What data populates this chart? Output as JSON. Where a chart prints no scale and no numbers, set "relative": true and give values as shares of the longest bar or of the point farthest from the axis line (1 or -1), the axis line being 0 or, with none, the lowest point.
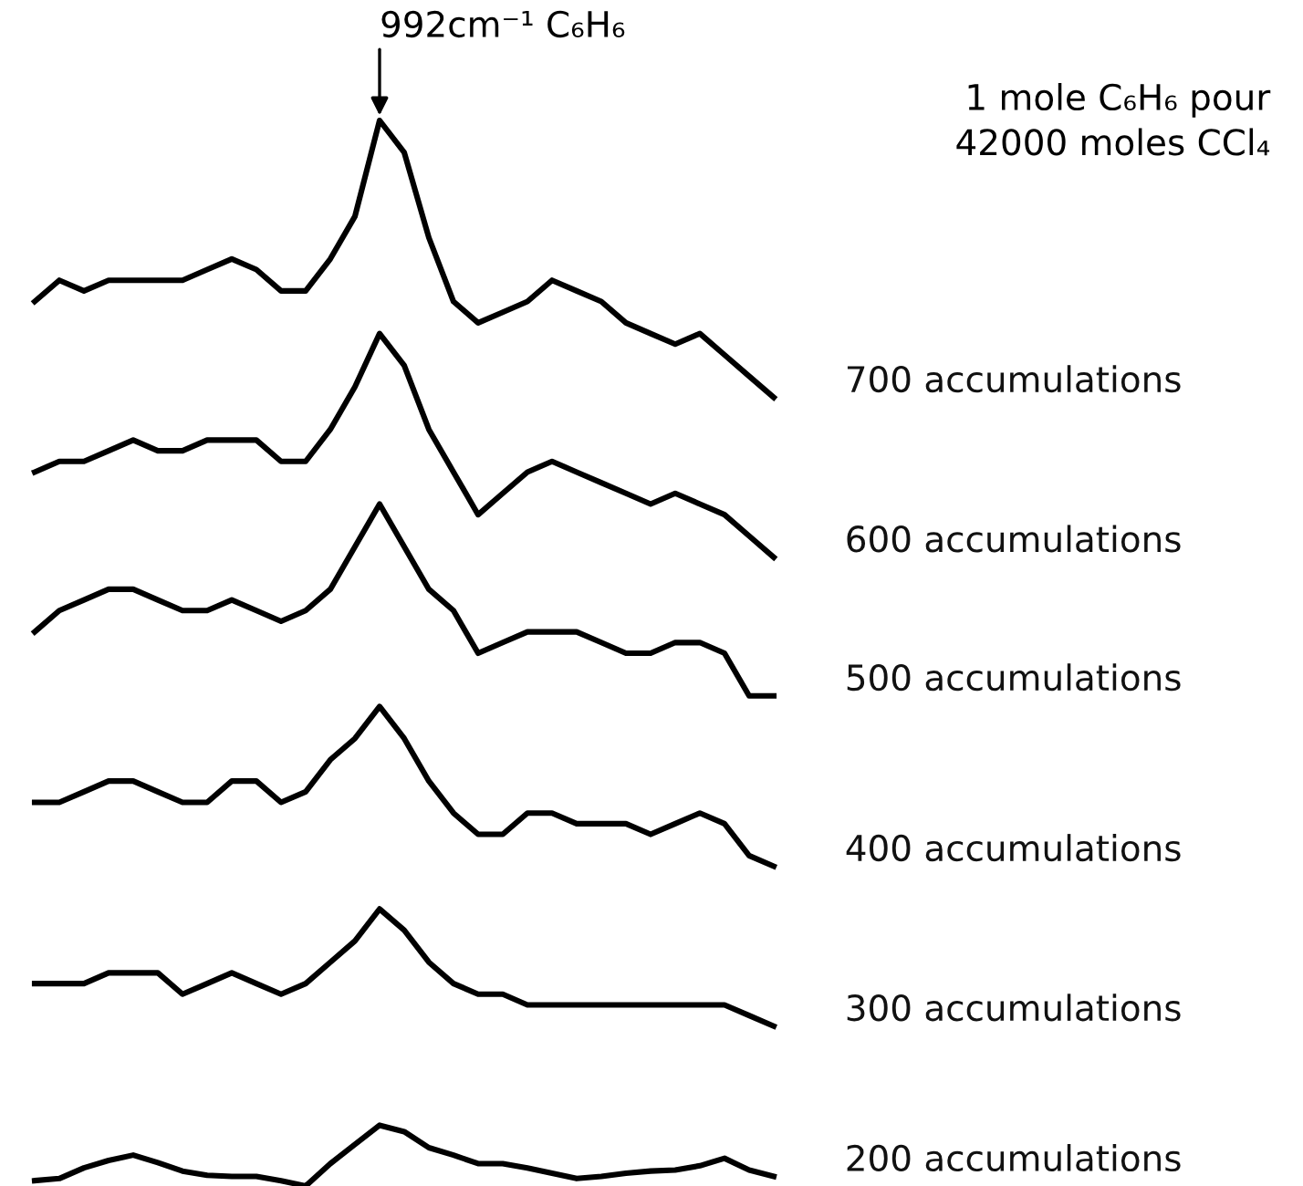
{
  "chart_data": {
    "type": "line",
    "relative": true,
    "legend": false,
    "marker": "none",
    "line_style": "solid",
    "categories": [
      null,
      null,
      null,
      null,
      null,
      null,
      null,
      null,
      null,
      null,
      null,
      null,
      null,
      null,
      null,
      null,
      null,
      null,
      null,
      null,
      null,
      null,
      null,
      null,
      null,
      null,
      null,
      null,
      null,
      null,
      null
    ],
    "series": [
      {
        "name": "700 accumulations",
        "color": "#000000",
        "values": [
          0.83,
          0.85,
          0.84,
          0.85,
          0.85,
          0.85,
          0.85,
          0.86,
          0.87,
          0.86,
          0.84,
          0.84,
          0.87,
          0.91,
          1,
          0.97,
          0.89,
          0.83,
          0.81,
          0.82,
          0.83,
          0.85,
          0.84,
          0.83,
          0.81,
          0.8,
          0.79,
          0.8,
          0.78,
          0.76,
          0.74
        ]
      },
      {
        "name": "600 accumulations",
        "color": "#000000",
        "values": [
          0.67,
          0.68,
          0.68,
          0.69,
          0.7,
          0.69,
          0.69,
          0.7,
          0.7,
          0.7,
          0.68,
          0.68,
          0.71,
          0.75,
          0.8,
          0.77,
          0.71,
          0.67,
          0.63,
          0.65,
          0.67,
          0.68,
          0.67,
          0.66,
          0.65,
          0.64,
          0.65,
          0.64,
          0.63,
          0.61,
          0.59
        ]
      },
      {
        "name": "500 accumulations",
        "color": "#000000",
        "values": [
          0.52,
          0.54,
          0.55,
          0.56,
          0.56,
          0.55,
          0.54,
          0.54,
          0.55,
          0.54,
          0.53,
          0.54,
          0.56,
          0.6,
          0.64,
          0.6,
          0.56,
          0.54,
          0.5,
          0.51,
          0.52,
          0.52,
          0.52,
          0.51,
          0.5,
          0.5,
          0.51,
          0.51,
          0.5,
          0.46,
          0.46
        ]
      },
      {
        "name": "400 accumulations",
        "color": "#000000",
        "values": [
          0.36,
          0.36,
          0.37,
          0.38,
          0.38,
          0.37,
          0.36,
          0.36,
          0.38,
          0.38,
          0.36,
          0.37,
          0.4,
          0.42,
          0.45,
          0.42,
          0.38,
          0.35,
          0.33,
          0.33,
          0.35,
          0.35,
          0.34,
          0.34,
          0.34,
          0.33,
          0.34,
          0.35,
          0.34,
          0.31,
          0.3
        ]
      },
      {
        "name": "300 accumulations",
        "color": "#000000",
        "values": [
          0.19,
          0.19,
          0.19,
          0.2,
          0.2,
          0.2,
          0.18,
          0.19,
          0.2,
          0.19,
          0.18,
          0.19,
          0.21,
          0.23,
          0.26,
          0.24,
          0.21,
          0.19,
          0.18,
          0.18,
          0.17,
          0.17,
          0.17,
          0.17,
          0.17,
          0.17,
          0.17,
          0.17,
          0.17,
          0.16,
          0.15
        ]
      },
      {
        "name": "200 accumulations",
        "color": "#000000",
        "values": [
          0.005,
          0.007,
          0.017,
          0.024,
          0.029,
          0.022,
          0.014,
          0.01,
          0.009,
          0.009,
          0.005,
          0,
          0.021,
          0.039,
          0.057,
          0.051,
          0.036,
          0.029,
          0.021,
          0.021,
          0.017,
          0.012,
          0.007,
          0.009,
          0.012,
          0.014,
          0.015,
          0.019,
          0.026,
          0.015,
          0.009
        ]
      }
    ],
    "annotations": [
      "992cm⁻¹ C₆H₆",
      "1 mole C₆H₆ pour\n42000 moles CCl₄"
    ]
  }
}
